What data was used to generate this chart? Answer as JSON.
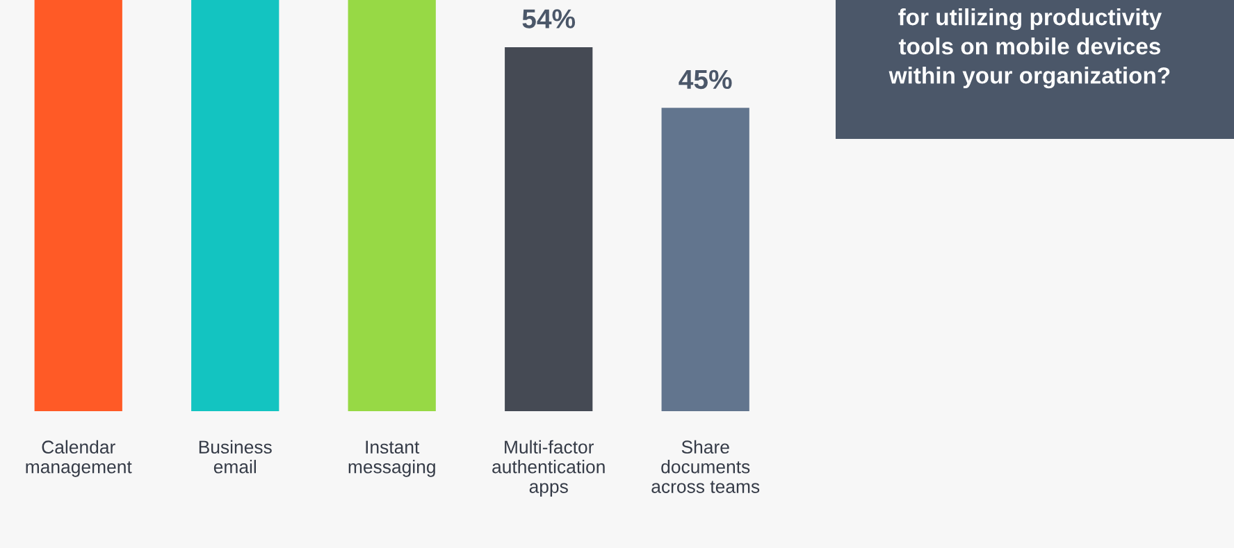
{
  "chart_data": {
    "type": "bar",
    "title": "for utilizing productivity\ntools on mobile devices\nwithin your organization?",
    "categories": [
      "Calendar\nmanagement",
      "Business\nemail",
      "Instant\nmessaging",
      "Multi-factor\nauthentication\napps",
      "Share\ndocuments\nacross teams"
    ],
    "values": [
      61,
      61,
      61,
      54,
      45
    ],
    "colors": [
      "#ff5a26",
      "#13c4c1",
      "#97d945",
      "#454a54",
      "#62758e"
    ],
    "value_labels": [
      null,
      null,
      null,
      "54%",
      "45%"
    ],
    "ylim": [
      0,
      61
    ],
    "tick_labels": "x",
    "grid": false,
    "legend": false
  }
}
